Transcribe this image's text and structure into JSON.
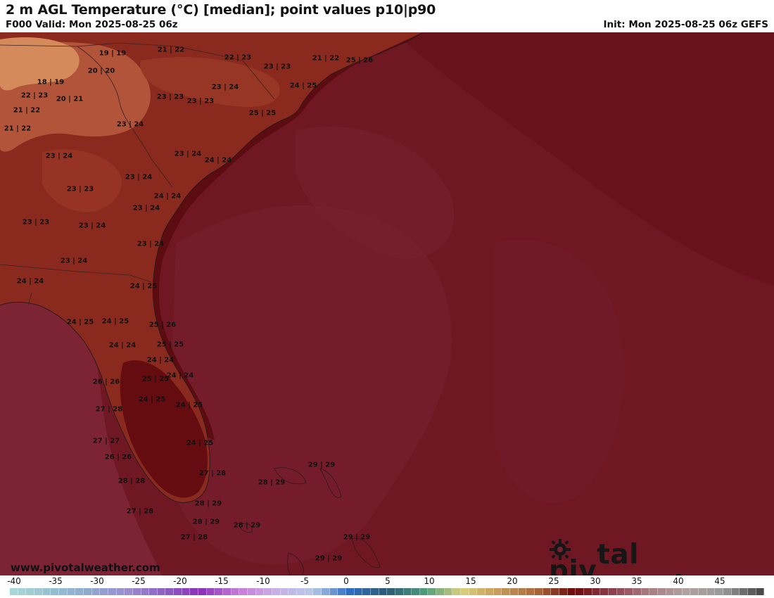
{
  "header": {
    "title": "2 m AGL Temperature (°C) [median]; point values p10|p90",
    "valid": "F000 Valid: Mon 2025-08-25 06z",
    "init": "Init: Mon 2025-08-25 06z GEFS"
  },
  "footer": {
    "url": "www.pivotalweather.com",
    "brand_left": "piv",
    "brand_right": "tal weather",
    "brand_icon": "sun-gear-icon"
  },
  "legend": {
    "ticks": [
      "-40",
      "-35",
      "-30",
      "-25",
      "-20",
      "-15",
      "-10",
      "-5",
      "0",
      "5",
      "10",
      "15",
      "20",
      "25",
      "30",
      "35",
      "40",
      "45"
    ],
    "colors": [
      "#a9d7d8",
      "#97c0d2",
      "#8fa9cf",
      "#9d8fd0",
      "#8e62c2",
      "#8a2fb8",
      "#c47ad6",
      "#c9aee6",
      "#b7c8e8",
      "#2f6ebf",
      "#2d5a73",
      "#4c9a7c",
      "#d8cf7c",
      "#c79a5a",
      "#a86a3c",
      "#6b0a0a",
      "#8c3d4c",
      "#a87c80",
      "#b0a0a4",
      "#9a9a9a",
      "#4a4a4a"
    ]
  },
  "map": {
    "colors": {
      "ocean": "#6f1824",
      "warm_ocean": "#7a2130",
      "coast_band": "#5c0c10",
      "land_warm": "#8a2a1e",
      "land_cool": "#b2543a",
      "mountains": "#d48a5a",
      "florida": "#640c10",
      "gulf": "#7c2434"
    },
    "point_values": [
      {
        "label": "19 | 19"
      },
      {
        "label": "21 | 22"
      },
      {
        "label": "22 | 23"
      },
      {
        "label": "21 | 22"
      },
      {
        "label": "25 | 26"
      },
      {
        "label": "20 | 20"
      },
      {
        "label": "23 | 23"
      },
      {
        "label": "18 | 19"
      },
      {
        "label": "23 | 24"
      },
      {
        "label": "24 | 25"
      },
      {
        "label": "22 | 23"
      },
      {
        "label": "20 | 21"
      },
      {
        "label": "23 | 23"
      },
      {
        "label": "23 | 23"
      },
      {
        "label": "21 | 22"
      },
      {
        "label": "25 | 25"
      },
      {
        "label": "21 | 22"
      },
      {
        "label": "23 | 24"
      },
      {
        "label": "23 | 24"
      },
      {
        "label": "23 | 24"
      },
      {
        "label": "24 | 24"
      },
      {
        "label": "23 | 24"
      },
      {
        "label": "23 | 23"
      },
      {
        "label": "24 | 24"
      },
      {
        "label": "23 | 24"
      },
      {
        "label": "23 | 23"
      },
      {
        "label": "23 | 24"
      },
      {
        "label": "23 | 24"
      },
      {
        "label": "23 | 24"
      },
      {
        "label": "24 | 24"
      },
      {
        "label": "24 | 25"
      },
      {
        "label": "24 | 25"
      },
      {
        "label": "24 | 25"
      },
      {
        "label": "25 | 26"
      },
      {
        "label": "24 | 24"
      },
      {
        "label": "25 | 25"
      },
      {
        "label": "24 | 24"
      },
      {
        "label": "26 | 26"
      },
      {
        "label": "25 | 25"
      },
      {
        "label": "24 | 24"
      },
      {
        "label": "24 | 25"
      },
      {
        "label": "27 | 28"
      },
      {
        "label": "24 | 25"
      },
      {
        "label": "27 | 27"
      },
      {
        "label": "24 | 25"
      },
      {
        "label": "26 | 26"
      },
      {
        "label": "29 | 29"
      },
      {
        "label": "27 | 28"
      },
      {
        "label": "28 | 28"
      },
      {
        "label": "28 | 29"
      },
      {
        "label": "28 | 29"
      },
      {
        "label": "27 | 28"
      },
      {
        "label": "28 | 29"
      },
      {
        "label": "28 | 29"
      },
      {
        "label": "29 | 29"
      },
      {
        "label": "27 | 28"
      },
      {
        "label": "29 | 29"
      }
    ]
  }
}
